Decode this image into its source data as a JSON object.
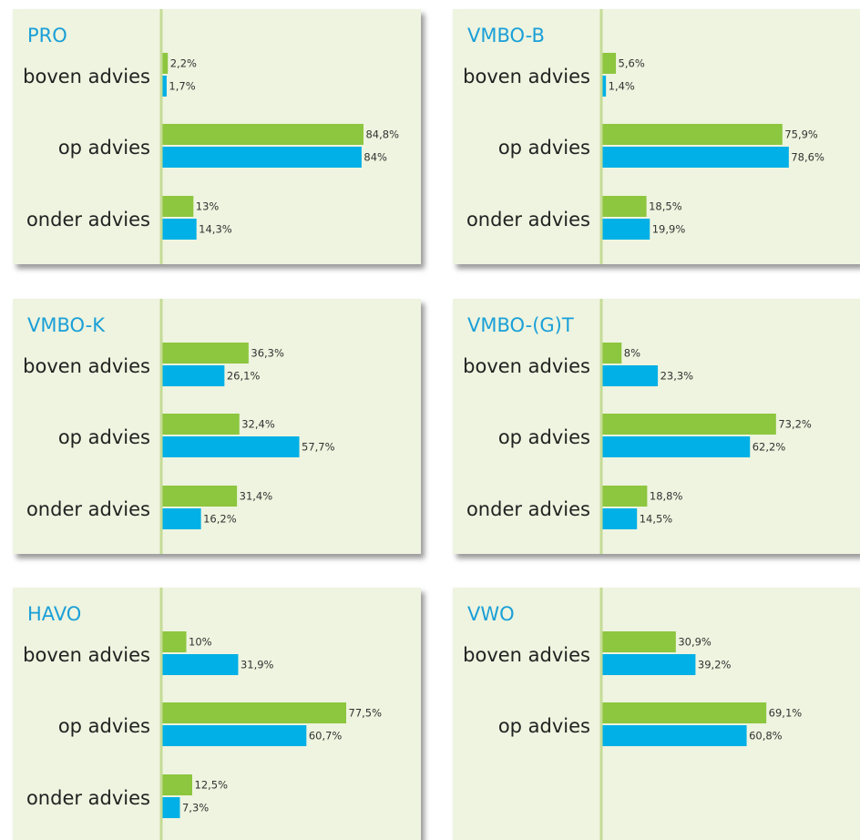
{
  "chart_data": [
    {
      "type": "barh",
      "title": "PRO",
      "categories": [
        "boven advies",
        "op advies",
        "onder advies"
      ],
      "series": [
        {
          "color": "#8dc63f",
          "values": [
            2.2,
            84.8,
            13
          ],
          "value_labels": [
            "2,2%",
            "84,8%",
            "13%"
          ]
        },
        {
          "color": "#00b0e6",
          "values": [
            1.7,
            84,
            14.3
          ],
          "value_labels": [
            "1,7%",
            "84%",
            "14,3%"
          ]
        }
      ]
    },
    {
      "type": "barh",
      "title": "VMBO-B",
      "categories": [
        "boven advies",
        "op advies",
        "onder advies"
      ],
      "series": [
        {
          "color": "#8dc63f",
          "values": [
            5.6,
            75.9,
            18.5
          ],
          "value_labels": [
            "5,6%",
            "75,9%",
            "18,5%"
          ]
        },
        {
          "color": "#00b0e6",
          "values": [
            1.4,
            78.6,
            19.9
          ],
          "value_labels": [
            "1,4%",
            "78,6%",
            "19,9%"
          ]
        }
      ]
    },
    {
      "type": "barh",
      "title": "VMBO-K",
      "categories": [
        "boven advies",
        "op advies",
        "onder advies"
      ],
      "series": [
        {
          "color": "#8dc63f",
          "values": [
            36.3,
            32.4,
            31.4
          ],
          "value_labels": [
            "36,3%",
            "32,4%",
            "31,4%"
          ]
        },
        {
          "color": "#00b0e6",
          "values": [
            26.1,
            57.7,
            16.2
          ],
          "value_labels": [
            "26,1%",
            "57,7%",
            "16,2%"
          ]
        }
      ]
    },
    {
      "type": "barh",
      "title": "VMBO-(G)T",
      "categories": [
        "boven advies",
        "op advies",
        "onder advies"
      ],
      "series": [
        {
          "color": "#8dc63f",
          "values": [
            8,
            73.2,
            18.8
          ],
          "value_labels": [
            "8%",
            "73,2%",
            "18,8%"
          ]
        },
        {
          "color": "#00b0e6",
          "values": [
            23.3,
            62.2,
            14.5
          ],
          "value_labels": [
            "23,3%",
            "62,2%",
            "14,5%"
          ]
        }
      ]
    },
    {
      "type": "barh",
      "title": "HAVO",
      "categories": [
        "boven advies",
        "op advies",
        "onder advies"
      ],
      "series": [
        {
          "color": "#8dc63f",
          "values": [
            10,
            77.5,
            12.5
          ],
          "value_labels": [
            "10%",
            "77,5%",
            "12,5%"
          ]
        },
        {
          "color": "#00b0e6",
          "values": [
            31.9,
            60.7,
            7.3
          ],
          "value_labels": [
            "31,9%",
            "60,7%",
            "7,3%"
          ]
        }
      ]
    },
    {
      "type": "barh",
      "title": "VWO",
      "categories": [
        "boven advies",
        "op advies"
      ],
      "series": [
        {
          "color": "#8dc63f",
          "values": [
            30.9,
            69.1
          ],
          "value_labels": [
            "30,9%",
            "69,1%"
          ]
        },
        {
          "color": "#00b0e6",
          "values": [
            39.2,
            60.8
          ],
          "value_labels": [
            "39,2%",
            "60,8%"
          ]
        }
      ]
    }
  ]
}
